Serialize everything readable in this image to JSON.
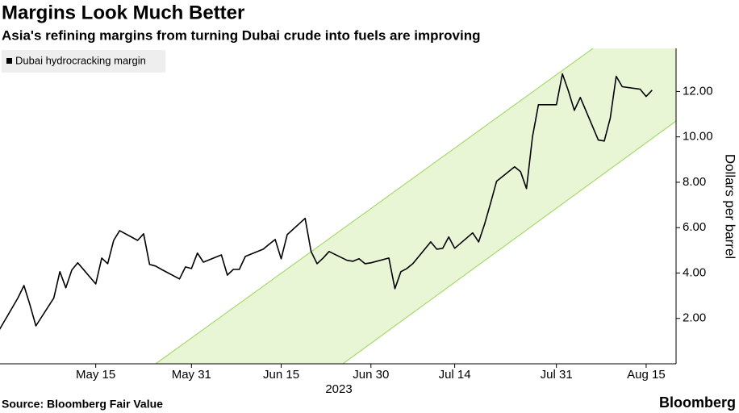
{
  "chart_data": {
    "type": "line",
    "title": "Margins Look Much Better",
    "subtitle": "Asia's refining margins from turning Dubai crude into fuels are improving",
    "y_label": "Dollars per barrel",
    "x_year_label": "2023",
    "source": "Source: Bloomberg Fair Value",
    "brand": "Bloomberg",
    "legend_position": "upper left",
    "grid": false,
    "x": [
      "2023-04-28",
      "2023-05-01",
      "2023-05-02",
      "2023-05-03",
      "2023-05-04",
      "2023-05-05",
      "2023-05-08",
      "2023-05-09",
      "2023-05-10",
      "2023-05-11",
      "2023-05-12",
      "2023-05-15",
      "2023-05-16",
      "2023-05-17",
      "2023-05-18",
      "2023-05-19",
      "2023-05-22",
      "2023-05-23",
      "2023-05-24",
      "2023-05-25",
      "2023-05-26",
      "2023-05-29",
      "2023-05-30",
      "2023-05-31",
      "2023-06-01",
      "2023-06-02",
      "2023-06-05",
      "2023-06-06",
      "2023-06-07",
      "2023-06-08",
      "2023-06-09",
      "2023-06-12",
      "2023-06-13",
      "2023-06-14",
      "2023-06-15",
      "2023-06-16",
      "2023-06-19",
      "2023-06-20",
      "2023-06-21",
      "2023-06-22",
      "2023-06-23",
      "2023-06-26",
      "2023-06-27",
      "2023-06-28",
      "2023-06-29",
      "2023-06-30",
      "2023-07-03",
      "2023-07-04",
      "2023-07-05",
      "2023-07-06",
      "2023-07-07",
      "2023-07-10",
      "2023-07-11",
      "2023-07-12",
      "2023-07-13",
      "2023-07-14",
      "2023-07-17",
      "2023-07-18",
      "2023-07-19",
      "2023-07-20",
      "2023-07-21",
      "2023-07-24",
      "2023-07-25",
      "2023-07-26",
      "2023-07-27",
      "2023-07-28",
      "2023-07-31",
      "2023-08-01",
      "2023-08-02",
      "2023-08-03",
      "2023-08-04",
      "2023-08-07",
      "2023-08-08",
      "2023-08-09",
      "2023-08-10",
      "2023-08-11",
      "2023-08-14",
      "2023-08-15",
      "2023-08-16"
    ],
    "series": [
      {
        "name": "Dubai hydrocracking margin",
        "color": "#000000",
        "values": [
          1.1,
          2.45,
          2.9,
          3.45,
          2.6,
          1.67,
          2.9,
          4.06,
          3.35,
          4.13,
          4.45,
          3.52,
          4.66,
          4.41,
          5.44,
          5.87,
          5.44,
          5.73,
          4.38,
          4.31,
          4.16,
          3.74,
          4.27,
          4.2,
          4.88,
          4.48,
          4.8,
          3.91,
          4.16,
          4.16,
          4.73,
          5.05,
          5.27,
          5.48,
          4.63,
          5.69,
          6.41,
          4.95,
          4.41,
          4.66,
          4.95,
          4.56,
          4.52,
          4.63,
          4.41,
          4.45,
          4.66,
          3.31,
          4.06,
          4.2,
          4.41,
          5.37,
          5.05,
          5.09,
          5.59,
          5.09,
          5.77,
          5.37,
          6.16,
          7.08,
          8.04,
          8.68,
          8.47,
          7.72,
          10.0,
          11.42,
          11.42,
          12.78,
          12.03,
          11.17,
          11.74,
          9.86,
          9.82,
          10.82,
          12.67,
          12.21,
          12.1,
          11.78,
          12.06
        ]
      }
    ],
    "xlim": [
      "2023-04-29",
      "2023-08-20"
    ],
    "xticks": [
      {
        "value": "2023-05-15",
        "label": "May 15"
      },
      {
        "value": "2023-05-31",
        "label": "May 31"
      },
      {
        "value": "2023-06-15",
        "label": "Jun 15"
      },
      {
        "value": "2023-06-30",
        "label": "Jun 30"
      },
      {
        "value": "2023-07-14",
        "label": "Jul 14"
      },
      {
        "value": "2023-07-31",
        "label": "Jul 31"
      },
      {
        "value": "2023-08-15",
        "label": "Aug 15"
      }
    ],
    "ylim": [
      0,
      13.9
    ],
    "yticks": [
      {
        "value": 2,
        "label": "2.00"
      },
      {
        "value": 4,
        "label": "4.00"
      },
      {
        "value": 6,
        "label": "6.00"
      },
      {
        "value": 8,
        "label": "8.00"
      },
      {
        "value": 10,
        "label": "10.00"
      },
      {
        "value": 12,
        "label": "12.00"
      }
    ]
  }
}
